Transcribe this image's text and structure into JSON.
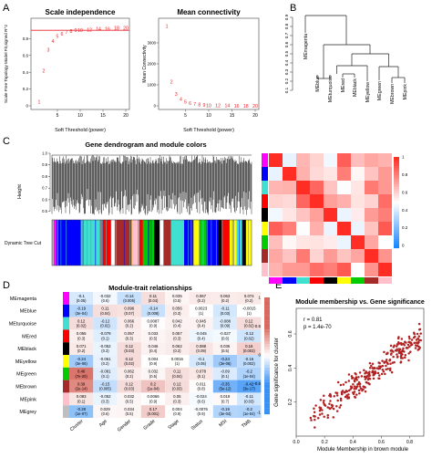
{
  "chart_data": [
    {
      "panel": "A",
      "type": "scatter",
      "title": "Scale independence",
      "xlabel": "Soft Threshold (power)",
      "ylabel": "Scale Free Topology Model Fit,signed R^2",
      "xlim": [
        0,
        20
      ],
      "ylim": [
        0,
        1
      ],
      "xticks": [
        5,
        10,
        15,
        20
      ],
      "yticks": [
        0,
        0.2,
        0.4,
        0.6,
        0.8
      ],
      "labels": [
        "1",
        "2",
        "3",
        "4",
        "5",
        "6",
        "7",
        "8",
        "9",
        "10",
        "12",
        "14",
        "16",
        "18",
        "20"
      ],
      "x": [
        1,
        2,
        3,
        4,
        5,
        6,
        7,
        8,
        9,
        10,
        12,
        14,
        16,
        18,
        20
      ],
      "y": [
        0.05,
        0.42,
        0.67,
        0.77,
        0.83,
        0.86,
        0.88,
        0.89,
        0.9,
        0.9,
        0.91,
        0.92,
        0.92,
        0.93,
        0.93
      ],
      "threshold": 0.9,
      "point_color": "#e8242a"
    },
    {
      "panel": "A",
      "type": "scatter",
      "title": "Mean connectivity",
      "xlabel": "Soft Threshold (power)",
      "ylabel": "Mean Connectivity",
      "xlim": [
        0,
        20
      ],
      "ylim": [
        0,
        4000
      ],
      "xticks": [
        5,
        10,
        15,
        20
      ],
      "yticks": [
        0,
        1000,
        2000,
        3000
      ],
      "labels": [
        "1",
        "2",
        "3",
        "4",
        "5",
        "6",
        "7",
        "8",
        "9",
        "10",
        "12",
        "14",
        "16",
        "18",
        "20"
      ],
      "x": [
        1,
        2,
        3,
        4,
        5,
        6,
        7,
        8,
        9,
        10,
        12,
        14,
        16,
        18,
        20
      ],
      "y": [
        3800,
        1150,
        560,
        320,
        190,
        120,
        80,
        55,
        40,
        30,
        20,
        14,
        10,
        8,
        6
      ],
      "point_color": "#e8242a"
    },
    {
      "panel": "B",
      "type": "dendrogram",
      "yticks": [
        0.1,
        0.2,
        0.3,
        0.4,
        0.5,
        0.6,
        0.7,
        0.8,
        0.9
      ],
      "leaves": [
        "MEmagenta",
        "MEblue",
        "MEturquoise",
        "MEred",
        "MEblack",
        "MEyellow",
        "MEgreen",
        "MEbrown",
        "MEpink"
      ]
    },
    {
      "panel": "C",
      "type": "heatmap",
      "title": "Gene dendrogram and module colors",
      "ylabel": "Height",
      "track_label": "Dynamic Tree Cut",
      "yticks": [
        0.5,
        0.6,
        0.7,
        0.8,
        0.9,
        1.0
      ],
      "module_colors": [
        "#ff00ff",
        "#0000ff",
        "#40e0d0",
        "#ff0000",
        "#000000",
        "#ffff00",
        "#00cc00",
        "#a52a2a",
        "#ffc0cb",
        "#bfbfbf"
      ],
      "colorbar_ticks": [
        1,
        0.8,
        0.6,
        0.4,
        0.2,
        0
      ]
    },
    {
      "panel": "D",
      "type": "heatmap",
      "title": "Module-trait relationships",
      "columns": [
        "Cluster",
        "Age",
        "Gender",
        "Grade",
        "Stage",
        "Status",
        "MSI",
        "TMB"
      ],
      "rows": [
        "MEmagenta",
        "MEblue",
        "MEturquoise",
        "MEred",
        "MEblack",
        "MEyellow",
        "MEgreen",
        "MEbrown",
        "MEpink",
        "MEgrey"
      ],
      "row_colors": [
        "#ff00ff",
        "#0000ff",
        "#40e0d0",
        "#ff0000",
        "#000000",
        "#ffff00",
        "#00cc00",
        "#a52a2a",
        "#ffc0cb",
        "#bfbfbf"
      ],
      "values": [
        [
          -0.1,
          -0.032,
          -0.14,
          0.11,
          0.035,
          0.067,
          0.063,
          0.074
        ],
        [
          -0.19,
          0.11,
          0.096,
          -0.14,
          0.056,
          0.0023,
          -0.11,
          -0.0015
        ],
        [
          0.12,
          -0.12,
          0.066,
          0.0087,
          0.042,
          0.045,
          -0.088,
          0.12
        ],
        [
          0.055,
          -0.079,
          0.057,
          0.033,
          0.057,
          -0.045,
          -0.027,
          -0.12
        ],
        [
          0.071,
          -0.052,
          0.12,
          0.046,
          0.062,
          0.088,
          0.036,
          0.16
        ],
        [
          -0.24,
          -0.061,
          0.12,
          0.004,
          0.0016,
          -0.1,
          -0.24,
          -0.16
        ],
        [
          0.46,
          -0.081,
          0.062,
          0.032,
          0.11,
          0.078,
          -0.09,
          -0.2
        ],
        [
          0.39,
          -0.15,
          0.12,
          0.2,
          0.12,
          0.011,
          -0.35,
          -0.42
        ],
        [
          0.083,
          -0.052,
          0.032,
          0.0066,
          0.05,
          -0.024,
          0.019,
          -0.11
        ],
        [
          -0.28,
          0.029,
          0.034,
          0.17,
          0.004,
          -0.0076,
          -0.19,
          -0.2
        ]
      ],
      "pvalues": [
        [
          "0.05",
          "0.6",
          "0.005",
          "0.04",
          "0.5",
          "0.2",
          "0.2",
          "0.2"
        ],
        [
          "3e-04",
          "0.04",
          "0.07",
          "0.008",
          "0.3",
          "1",
          "0.03",
          "1"
        ],
        [
          "0.02",
          "0.02",
          "0.2",
          "0.9",
          "0.4",
          "0.4",
          "0.09",
          "0.02"
        ],
        [
          "0.3",
          "0.1",
          "0.3",
          "0.5",
          "0.3",
          "0.4",
          "0.6",
          "0.02"
        ],
        [
          "0.2",
          "0.3",
          "0.03",
          "0.4",
          "0.2",
          "0.09",
          "0.5",
          "0.003"
        ],
        [
          "3e-06",
          "0.2",
          "0.02",
          "0.9",
          "1",
          "0.05",
          "3e-06",
          "0.002"
        ],
        [
          "7e-20",
          "0.1",
          "0.2",
          "0.5",
          "0.04",
          "0.1",
          "0.1",
          "1e-04"
        ],
        [
          "2e-14",
          "0.005",
          "0.03",
          "1e-04",
          "0.03",
          "0.8",
          "5e-12",
          "3e-17"
        ],
        [
          "0.1",
          "0.3",
          "0.5",
          "0.9",
          "0.3",
          "0.6",
          "0.7",
          "0.03"
        ],
        [
          "1e-07",
          "0.6",
          "0.5",
          "0.001",
          "0.9",
          "0.9",
          "3e-04",
          "1e-04"
        ]
      ],
      "colorbar_ticks": [
        1,
        0.5,
        0,
        -0.5,
        -1
      ]
    },
    {
      "panel": "E",
      "type": "scatter",
      "title": "Module membership vs. Gene significance",
      "xlabel": "Module Membership in brown module",
      "ylabel": "Gene significance for cluster",
      "annotation": [
        "r = 0.81",
        "p = 1.4e-70"
      ],
      "xlim": [
        0,
        0.9
      ],
      "ylim": [
        0,
        0.75
      ],
      "xticks": [
        0.0,
        0.2,
        0.4,
        0.6,
        0.8
      ],
      "yticks": [
        0.2,
        0.4,
        0.6
      ],
      "n_points": 300,
      "slope": 0.62,
      "intercept": 0.04,
      "point_color": "#b22222"
    }
  ],
  "panel_labels": [
    "A",
    "B",
    "C",
    "D",
    "E"
  ]
}
